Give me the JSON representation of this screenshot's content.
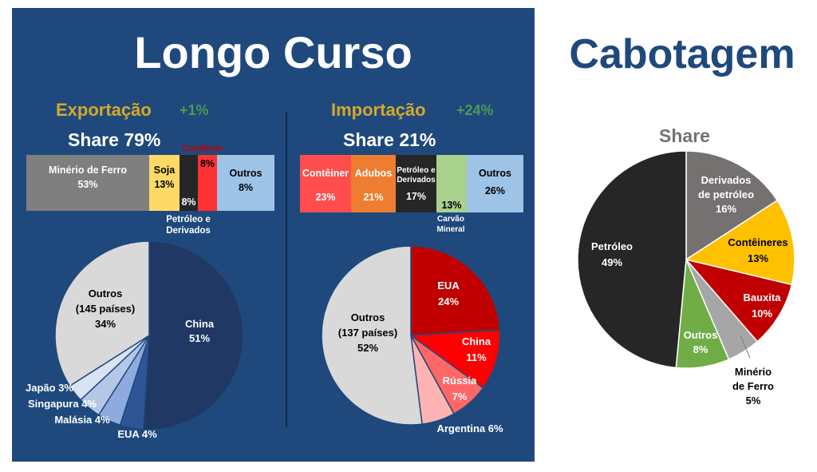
{
  "longo_curso": {
    "title": "Longo Curso",
    "exportacao": {
      "label": "Exportação",
      "growth": "+1%",
      "share": "Share 79%"
    },
    "importacao": {
      "label": "Importação",
      "growth": "+24%",
      "share": "Share 21%"
    }
  },
  "cabotagem": {
    "title": "Cabotagem",
    "share_label": "Share"
  },
  "colors": {
    "panel": "#1f497d",
    "gold": "#d4a92a",
    "green": "#4f9a52"
  },
  "chart_data": [
    {
      "id": "export-products",
      "type": "bar",
      "stacked": true,
      "categories": [
        "Minério de Ferro",
        "Soja",
        "Petróleo e Derivados",
        "Contêiner",
        "Outros"
      ],
      "values": [
        53,
        13,
        8,
        8,
        8
      ],
      "labels": [
        "53%",
        "13%",
        "8%",
        "8%",
        "8%"
      ],
      "colors": [
        "#7f7f7f",
        "#ffd966",
        "#262626",
        "#ff3333",
        "#9dc3e6"
      ]
    },
    {
      "id": "import-products",
      "type": "bar",
      "stacked": true,
      "categories": [
        "Contêiner",
        "Adubos",
        "Petróleo e Derivados",
        "Carvão Mineral",
        "Outros"
      ],
      "values": [
        23,
        21,
        17,
        13,
        26
      ],
      "labels": [
        "23%",
        "21%",
        "17%",
        "13%",
        "26%"
      ],
      "colors": [
        "#ff4d4d",
        "#ed7d31",
        "#262626",
        "#a9d18e",
        "#9dc3e6"
      ]
    },
    {
      "id": "export-destinations",
      "type": "pie",
      "categories": [
        "China",
        "EUA",
        "Malásia",
        "Singapura",
        "Japão",
        "Outros (145 países)"
      ],
      "values": [
        51,
        4,
        4,
        4,
        3,
        34
      ],
      "labels": [
        "51%",
        "4%",
        "4%",
        "4%",
        "3%",
        "34%"
      ],
      "colors": [
        "#1f3864",
        "#2f5597",
        "#8faadc",
        "#b4c7e7",
        "#dae3f3",
        "#d9d9d9"
      ]
    },
    {
      "id": "import-origins",
      "type": "pie",
      "categories": [
        "EUA",
        "China",
        "Rússia",
        "Argentina",
        "Outros (137 países)"
      ],
      "values": [
        24,
        11,
        7,
        6,
        52
      ],
      "labels": [
        "24%",
        "11%",
        "7%",
        "6%",
        "52%"
      ],
      "colors": [
        "#c00000",
        "#ff0000",
        "#ff6666",
        "#ffb3b3",
        "#d9d9d9"
      ]
    },
    {
      "id": "cabotagem-share",
      "type": "pie",
      "categories": [
        "Derivados de petróleo",
        "Contêineres",
        "Bauxita",
        "Minério de Ferro",
        "Outros",
        "Petróleo"
      ],
      "values": [
        16,
        13,
        10,
        5,
        8,
        49
      ],
      "labels": [
        "16%",
        "13%",
        "10%",
        "5%",
        "8%",
        "49%"
      ],
      "colors": [
        "#767171",
        "#ffc000",
        "#c00000",
        "#a6a6a6",
        "#70ad47",
        "#262626"
      ]
    }
  ]
}
